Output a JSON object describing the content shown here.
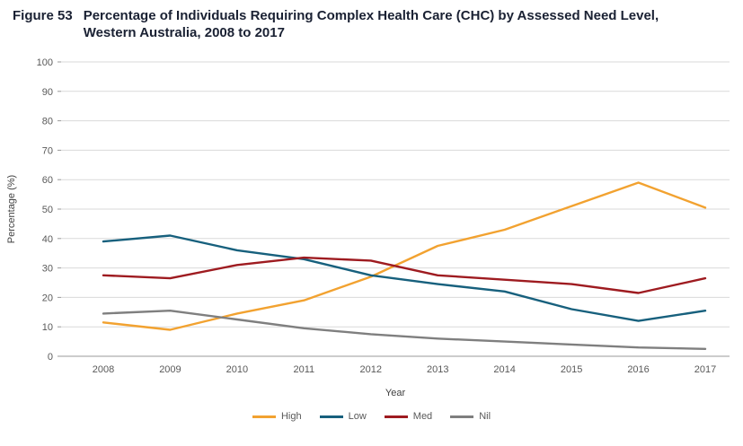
{
  "figure": {
    "label": "Figure 53",
    "title_line1": "Percentage of Individuals Requiring Complex Health Care (CHC) by Assessed Need Level,",
    "title_line2": "Western Australia, 2008 to 2017"
  },
  "chart_data": {
    "type": "line",
    "x": [
      2008,
      2009,
      2010,
      2011,
      2012,
      2013,
      2014,
      2015,
      2016,
      2017
    ],
    "series": [
      {
        "name": "High",
        "color": "#F2A230",
        "values": [
          11.5,
          9,
          14.5,
          19,
          27,
          37.5,
          43,
          51,
          59,
          50.5
        ]
      },
      {
        "name": "Low",
        "color": "#17607D",
        "values": [
          39,
          41,
          36,
          33,
          27.5,
          24.5,
          22,
          16,
          12,
          15.5
        ]
      },
      {
        "name": "Med",
        "color": "#9E1B20",
        "values": [
          27.5,
          26.5,
          31,
          33.5,
          32.5,
          27.5,
          26,
          24.5,
          21.5,
          26.5
        ]
      },
      {
        "name": "Nil",
        "color": "#7F7F7F",
        "values": [
          14.5,
          15.5,
          12.5,
          9.5,
          7.5,
          6,
          5,
          4,
          3,
          2.5
        ]
      }
    ],
    "xlabel": "Year",
    "ylabel": "Percentage (%)",
    "ylim": [
      0,
      100
    ],
    "ytick_step": 10,
    "grid": true,
    "legend_position": "bottom",
    "colors": {
      "gridline": "#d9d9d9",
      "axis": "#9a9a9a",
      "tick_text": "#595959"
    }
  }
}
